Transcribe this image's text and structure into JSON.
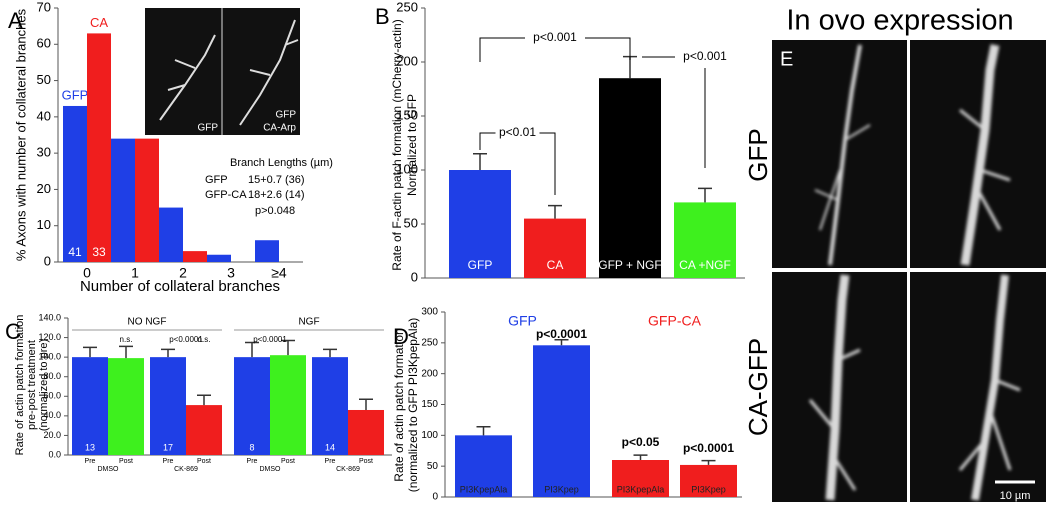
{
  "chart_data": [
    {
      "type": "grouped_bar",
      "panel": "A",
      "ylabel": "% Axons with number of collateral branches",
      "xlabel": "Number of collateral branches",
      "categories": [
        "0",
        "1",
        "2",
        "3",
        "≥4"
      ],
      "series": [
        {
          "name": "GFP",
          "color": "#1f3fe6",
          "values": [
            43,
            34,
            15,
            2,
            6
          ],
          "n": 41
        },
        {
          "name": "CA",
          "color": "#f01e1e",
          "values": [
            63,
            34,
            3,
            0,
            0
          ],
          "n": 33
        }
      ],
      "ylim": [
        0,
        70
      ],
      "yticks": [
        0,
        10,
        20,
        30,
        40,
        50,
        60,
        70
      ],
      "inset_labels": [
        [
          "GFP"
        ],
        [
          "GFP",
          "CA-Arp"
        ]
      ],
      "branch_title": "Branch Lengths (µm)",
      "branch_rows": [
        [
          "GFP",
          "15+0.7 (36)"
        ],
        [
          "GFP-CA",
          "18+2.6 (14)"
        ]
      ],
      "branch_p": "p>0.048"
    },
    {
      "type": "bar",
      "panel": "B",
      "ylabel": [
        "Rate of F-actin patch formation (mCherry-actin)",
        "Normalized to GFP"
      ],
      "categories": [
        "GFP",
        "CA",
        "GFP + NGF",
        "CA +NGF"
      ],
      "values": [
        100,
        55,
        185,
        70
      ],
      "errors": [
        15,
        12,
        20,
        13
      ],
      "colors": [
        "#1f3fe6",
        "#f01e1e",
        "#000000",
        "#3ef01e"
      ],
      "ylim": [
        0,
        250
      ],
      "yticks": [
        0,
        50,
        100,
        150,
        200,
        250
      ],
      "annotations": [
        "p<0.001",
        "p<0.001",
        "p<0.01"
      ]
    },
    {
      "type": "bar",
      "panel": "C",
      "ylabel": [
        "Rate of actin patch formation",
        "pre-post treatment",
        "(normalized to pre)"
      ],
      "categories": [
        "Pre",
        "Post",
        "Pre",
        "Post",
        "Pre",
        "Post",
        "Pre",
        "Post"
      ],
      "values": [
        100,
        99,
        100,
        51,
        100,
        102,
        100,
        46
      ],
      "errors": [
        10,
        12,
        8,
        10,
        15,
        15,
        8,
        11
      ],
      "colors": [
        "#1f3fe6",
        "#3ef01e",
        "#1f3fe6",
        "#f01e1e",
        "#1f3fe6",
        "#3ef01e",
        "#1f3fe6",
        "#f01e1e"
      ],
      "n": [
        13,
        null,
        17,
        null,
        8,
        null,
        14,
        null
      ],
      "groups": [
        "DMSO",
        "CK-869",
        "DMSO",
        "CK-869"
      ],
      "sections": [
        "NO NGF",
        "NGF"
      ],
      "annotations": [
        "n.s.",
        "p<0.0001",
        "n.s.",
        "p<0.0001"
      ],
      "ylim": [
        0,
        140
      ],
      "yticks": [
        {
          "value": 0,
          "label": "0.0"
        },
        {
          "value": 20,
          "label": "20.0"
        },
        {
          "value": 40,
          "label": "40.0"
        },
        {
          "value": 60,
          "label": "60.0"
        },
        {
          "value": 80,
          "label": "80.0"
        },
        {
          "value": 100,
          "label": "100.0"
        },
        {
          "value": 120,
          "label": "120.0"
        },
        {
          "value": 140,
          "label": "140.0"
        }
      ]
    },
    {
      "type": "bar",
      "panel": "D",
      "ylabel": [
        "Rate of actin patch formation",
        "(normalized to GFP PI3KpepAla)"
      ],
      "categories": [
        "PI3KpepAla",
        "PI3Kpep",
        "PI3KpepAla",
        "PI3Kpep"
      ],
      "values": [
        100,
        246,
        60,
        52
      ],
      "errors": [
        14,
        9,
        8,
        7
      ],
      "colors": [
        "#1f3fe6",
        "#1f3fe6",
        "#f01e1e",
        "#f01e1e"
      ],
      "legend": [
        {
          "name": "GFP",
          "color": "#1f3fe6"
        },
        {
          "name": "GFP-CA",
          "color": "#f01e1e"
        }
      ],
      "annotations": [
        "p<0.0001",
        "p<0.05",
        "p<0.0001"
      ],
      "ylim": [
        0,
        300
      ],
      "yticks": [
        0,
        50,
        100,
        150,
        200,
        250,
        300
      ]
    }
  ],
  "image_panel": {
    "panel": "E",
    "title": "In ovo expression",
    "rows": [
      "GFP",
      "CA-GFP"
    ],
    "scale_bar": "10 µm"
  }
}
